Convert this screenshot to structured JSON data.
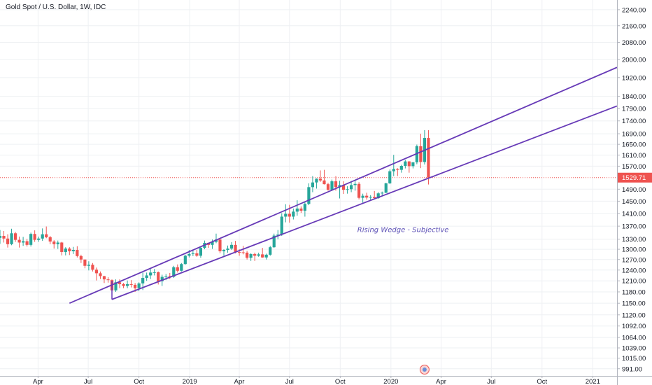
{
  "chart_data": {
    "type": "candlestick",
    "title": "Gold Spot / U.S. Dollar, 1W, IDC",
    "y_axis": {
      "ticks": [
        991.0,
        1015.0,
        1039.0,
        1064.0,
        1092.0,
        1120.0,
        1150.0,
        1180.0,
        1210.0,
        1240.0,
        1270.0,
        1300.0,
        1330.0,
        1370.0,
        1410.0,
        1450.0,
        1490.0,
        1570.0,
        1610.0,
        1650.0,
        1690.0,
        1740.0,
        1790.0,
        1840.0,
        1920.0,
        2000.0,
        2080.0,
        2160.0,
        2240.0
      ],
      "tick_labels": [
        "991.00",
        "1015.00",
        "1039.00",
        "1064.00",
        "1092.00",
        "1120.00",
        "1150.00",
        "1180.00",
        "1210.00",
        "1240.00",
        "1270.00",
        "1300.00",
        "1330.00",
        "1370.00",
        "1410.00",
        "1450.00",
        "1490.00",
        "1570.00",
        "1610.00",
        "1650.00",
        "1690.00",
        "1740.00",
        "1790.00",
        "1840.00",
        "1920.00",
        "2000.00",
        "2080.00",
        "2160.00",
        "2240.00"
      ],
      "scale": "log",
      "range": [
        975,
        2290
      ]
    },
    "x_axis": {
      "tick_labels": [
        "Apr",
        "Jul",
        "Oct",
        "2019",
        "Apr",
        "Jul",
        "Oct",
        "2020",
        "Apr",
        "Jul",
        "Oct",
        "2021"
      ],
      "tick_dates": [
        "2018-04-01",
        "2018-07-01",
        "2018-10-01",
        "2019-01-01",
        "2019-04-01",
        "2019-07-01",
        "2019-10-01",
        "2020-01-01",
        "2020-04-01",
        "2020-07-01",
        "2020-10-01",
        "2021-01-01"
      ],
      "range": [
        "2018-01-22",
        "2021-02-14"
      ]
    },
    "current_price": {
      "value": 1529.71,
      "label": "1529.71"
    },
    "annotation": "Rising Wedge - Subjective",
    "colors": {
      "up": "#26a69a",
      "down": "#ef5350",
      "wedge": "#673ab7",
      "annotation": "#5b4fb5",
      "grid": "#eef0f3",
      "price_line": "#ef5350"
    },
    "trendlines": [
      {
        "name": "upper",
        "start": {
          "date": "2018-05-28",
          "price": 1150
        },
        "end": {
          "date": "2021-02-14",
          "price": 1965
        }
      },
      {
        "name": "lower",
        "start": {
          "date": "2018-08-13",
          "price": 1160
        },
        "end": {
          "date": "2021-02-14",
          "price": 1800
        }
      }
    ],
    "candles": [
      {
        "date": "2018-01-22",
        "o": 1334,
        "h": 1358,
        "l": 1316,
        "c": 1340
      },
      {
        "date": "2018-01-29",
        "o": 1340,
        "h": 1355,
        "l": 1320,
        "c": 1332
      },
      {
        "date": "2018-02-05",
        "o": 1332,
        "h": 1345,
        "l": 1305,
        "c": 1315
      },
      {
        "date": "2018-02-12",
        "o": 1315,
        "h": 1362,
        "l": 1312,
        "c": 1348
      },
      {
        "date": "2018-02-19",
        "o": 1348,
        "h": 1352,
        "l": 1322,
        "c": 1328
      },
      {
        "date": "2018-02-26",
        "o": 1328,
        "h": 1338,
        "l": 1305,
        "c": 1320
      },
      {
        "date": "2018-03-05",
        "o": 1320,
        "h": 1337,
        "l": 1310,
        "c": 1324
      },
      {
        "date": "2018-03-12",
        "o": 1324,
        "h": 1331,
        "l": 1308,
        "c": 1313
      },
      {
        "date": "2018-03-19",
        "o": 1313,
        "h": 1350,
        "l": 1308,
        "c": 1346
      },
      {
        "date": "2018-03-26",
        "o": 1346,
        "h": 1357,
        "l": 1322,
        "c": 1328
      },
      {
        "date": "2018-04-02",
        "o": 1328,
        "h": 1338,
        "l": 1322,
        "c": 1332
      },
      {
        "date": "2018-04-09",
        "o": 1332,
        "h": 1363,
        "l": 1325,
        "c": 1345
      },
      {
        "date": "2018-04-16",
        "o": 1345,
        "h": 1369,
        "l": 1333,
        "c": 1336
      },
      {
        "date": "2018-04-23",
        "o": 1336,
        "h": 1340,
        "l": 1315,
        "c": 1323
      },
      {
        "date": "2018-04-30",
        "o": 1323,
        "h": 1327,
        "l": 1302,
        "c": 1315
      },
      {
        "date": "2018-05-07",
        "o": 1315,
        "h": 1326,
        "l": 1301,
        "c": 1320
      },
      {
        "date": "2018-05-14",
        "o": 1320,
        "h": 1322,
        "l": 1282,
        "c": 1292
      },
      {
        "date": "2018-05-21",
        "o": 1292,
        "h": 1306,
        "l": 1282,
        "c": 1302
      },
      {
        "date": "2018-05-28",
        "o": 1302,
        "h": 1306,
        "l": 1283,
        "c": 1294
      },
      {
        "date": "2018-06-04",
        "o": 1294,
        "h": 1307,
        "l": 1286,
        "c": 1298
      },
      {
        "date": "2018-06-11",
        "o": 1298,
        "h": 1309,
        "l": 1276,
        "c": 1280
      },
      {
        "date": "2018-06-18",
        "o": 1280,
        "h": 1284,
        "l": 1260,
        "c": 1270
      },
      {
        "date": "2018-06-25",
        "o": 1270,
        "h": 1270,
        "l": 1245,
        "c": 1252
      },
      {
        "date": "2018-07-02",
        "o": 1252,
        "h": 1265,
        "l": 1239,
        "c": 1255
      },
      {
        "date": "2018-07-09",
        "o": 1255,
        "h": 1260,
        "l": 1236,
        "c": 1241
      },
      {
        "date": "2018-07-16",
        "o": 1241,
        "h": 1247,
        "l": 1211,
        "c": 1231
      },
      {
        "date": "2018-07-23",
        "o": 1231,
        "h": 1236,
        "l": 1215,
        "c": 1223
      },
      {
        "date": "2018-07-30",
        "o": 1223,
        "h": 1224,
        "l": 1204,
        "c": 1214
      },
      {
        "date": "2018-08-06",
        "o": 1214,
        "h": 1220,
        "l": 1205,
        "c": 1212
      },
      {
        "date": "2018-08-13",
        "o": 1212,
        "h": 1214,
        "l": 1160,
        "c": 1184
      },
      {
        "date": "2018-08-20",
        "o": 1184,
        "h": 1214,
        "l": 1180,
        "c": 1206
      },
      {
        "date": "2018-08-27",
        "o": 1206,
        "h": 1214,
        "l": 1190,
        "c": 1201
      },
      {
        "date": "2018-09-03",
        "o": 1201,
        "h": 1204,
        "l": 1190,
        "c": 1196
      },
      {
        "date": "2018-09-10",
        "o": 1196,
        "h": 1211,
        "l": 1190,
        "c": 1201
      },
      {
        "date": "2018-09-17",
        "o": 1201,
        "h": 1212,
        "l": 1192,
        "c": 1199
      },
      {
        "date": "2018-09-24",
        "o": 1199,
        "h": 1204,
        "l": 1180,
        "c": 1190
      },
      {
        "date": "2018-10-01",
        "o": 1190,
        "h": 1206,
        "l": 1182,
        "c": 1203
      },
      {
        "date": "2018-10-08",
        "o": 1203,
        "h": 1233,
        "l": 1185,
        "c": 1218
      },
      {
        "date": "2018-10-15",
        "o": 1218,
        "h": 1233,
        "l": 1210,
        "c": 1225
      },
      {
        "date": "2018-10-22",
        "o": 1225,
        "h": 1243,
        "l": 1215,
        "c": 1233
      },
      {
        "date": "2018-10-29",
        "o": 1233,
        "h": 1243,
        "l": 1225,
        "c": 1234
      },
      {
        "date": "2018-11-05",
        "o": 1234,
        "h": 1236,
        "l": 1200,
        "c": 1209
      },
      {
        "date": "2018-11-12",
        "o": 1209,
        "h": 1227,
        "l": 1196,
        "c": 1221
      },
      {
        "date": "2018-11-19",
        "o": 1221,
        "h": 1229,
        "l": 1212,
        "c": 1223
      },
      {
        "date": "2018-11-26",
        "o": 1223,
        "h": 1232,
        "l": 1215,
        "c": 1221
      },
      {
        "date": "2018-12-03",
        "o": 1221,
        "h": 1252,
        "l": 1218,
        "c": 1248
      },
      {
        "date": "2018-12-10",
        "o": 1248,
        "h": 1256,
        "l": 1233,
        "c": 1238
      },
      {
        "date": "2018-12-17",
        "o": 1238,
        "h": 1260,
        "l": 1236,
        "c": 1257
      },
      {
        "date": "2018-12-24",
        "o": 1257,
        "h": 1284,
        "l": 1255,
        "c": 1281
      },
      {
        "date": "2018-12-31",
        "o": 1281,
        "h": 1298,
        "l": 1276,
        "c": 1286
      },
      {
        "date": "2019-01-07",
        "o": 1286,
        "h": 1298,
        "l": 1280,
        "c": 1288
      },
      {
        "date": "2019-01-14",
        "o": 1288,
        "h": 1298,
        "l": 1278,
        "c": 1281
      },
      {
        "date": "2019-01-21",
        "o": 1281,
        "h": 1307,
        "l": 1275,
        "c": 1304
      },
      {
        "date": "2019-01-28",
        "o": 1304,
        "h": 1326,
        "l": 1300,
        "c": 1319
      },
      {
        "date": "2019-02-04",
        "o": 1319,
        "h": 1320,
        "l": 1304,
        "c": 1313
      },
      {
        "date": "2019-02-11",
        "o": 1313,
        "h": 1329,
        "l": 1301,
        "c": 1322
      },
      {
        "date": "2019-02-18",
        "o": 1322,
        "h": 1347,
        "l": 1318,
        "c": 1329
      },
      {
        "date": "2019-02-25",
        "o": 1329,
        "h": 1334,
        "l": 1288,
        "c": 1294
      },
      {
        "date": "2019-03-04",
        "o": 1294,
        "h": 1300,
        "l": 1281,
        "c": 1298
      },
      {
        "date": "2019-03-11",
        "o": 1298,
        "h": 1311,
        "l": 1290,
        "c": 1302
      },
      {
        "date": "2019-03-18",
        "o": 1302,
        "h": 1321,
        "l": 1298,
        "c": 1313
      },
      {
        "date": "2019-03-25",
        "o": 1313,
        "h": 1325,
        "l": 1288,
        "c": 1292
      },
      {
        "date": "2019-04-01",
        "o": 1292,
        "h": 1300,
        "l": 1281,
        "c": 1291
      },
      {
        "date": "2019-04-08",
        "o": 1291,
        "h": 1310,
        "l": 1285,
        "c": 1290
      },
      {
        "date": "2019-04-15",
        "o": 1290,
        "h": 1295,
        "l": 1270,
        "c": 1275
      },
      {
        "date": "2019-04-22",
        "o": 1275,
        "h": 1288,
        "l": 1266,
        "c": 1286
      },
      {
        "date": "2019-04-29",
        "o": 1286,
        "h": 1290,
        "l": 1266,
        "c": 1281
      },
      {
        "date": "2019-05-06",
        "o": 1281,
        "h": 1290,
        "l": 1278,
        "c": 1285
      },
      {
        "date": "2019-05-13",
        "o": 1285,
        "h": 1304,
        "l": 1275,
        "c": 1276
      },
      {
        "date": "2019-05-20",
        "o": 1276,
        "h": 1287,
        "l": 1270,
        "c": 1284
      },
      {
        "date": "2019-05-27",
        "o": 1284,
        "h": 1310,
        "l": 1281,
        "c": 1306
      },
      {
        "date": "2019-06-03",
        "o": 1306,
        "h": 1347,
        "l": 1304,
        "c": 1341
      },
      {
        "date": "2019-06-10",
        "o": 1341,
        "h": 1358,
        "l": 1330,
        "c": 1344
      },
      {
        "date": "2019-06-17",
        "o": 1344,
        "h": 1411,
        "l": 1340,
        "c": 1400
      },
      {
        "date": "2019-06-24",
        "o": 1400,
        "h": 1440,
        "l": 1382,
        "c": 1409
      },
      {
        "date": "2019-07-01",
        "o": 1409,
        "h": 1438,
        "l": 1381,
        "c": 1400
      },
      {
        "date": "2019-07-08",
        "o": 1400,
        "h": 1426,
        "l": 1391,
        "c": 1416
      },
      {
        "date": "2019-07-15",
        "o": 1416,
        "h": 1453,
        "l": 1403,
        "c": 1426
      },
      {
        "date": "2019-07-22",
        "o": 1426,
        "h": 1433,
        "l": 1412,
        "c": 1419
      },
      {
        "date": "2019-07-29",
        "o": 1419,
        "h": 1446,
        "l": 1400,
        "c": 1441
      },
      {
        "date": "2019-08-05",
        "o": 1441,
        "h": 1510,
        "l": 1437,
        "c": 1497
      },
      {
        "date": "2019-08-12",
        "o": 1497,
        "h": 1535,
        "l": 1480,
        "c": 1513
      },
      {
        "date": "2019-08-19",
        "o": 1513,
        "h": 1527,
        "l": 1492,
        "c": 1526
      },
      {
        "date": "2019-08-26",
        "o": 1526,
        "h": 1555,
        "l": 1515,
        "c": 1520
      },
      {
        "date": "2019-09-02",
        "o": 1520,
        "h": 1557,
        "l": 1506,
        "c": 1507
      },
      {
        "date": "2019-09-09",
        "o": 1507,
        "h": 1512,
        "l": 1485,
        "c": 1488
      },
      {
        "date": "2019-09-16",
        "o": 1488,
        "h": 1523,
        "l": 1484,
        "c": 1517
      },
      {
        "date": "2019-09-23",
        "o": 1517,
        "h": 1535,
        "l": 1485,
        "c": 1497
      },
      {
        "date": "2019-09-30",
        "o": 1497,
        "h": 1519,
        "l": 1459,
        "c": 1504
      },
      {
        "date": "2019-10-07",
        "o": 1504,
        "h": 1517,
        "l": 1474,
        "c": 1488
      },
      {
        "date": "2019-10-14",
        "o": 1488,
        "h": 1500,
        "l": 1475,
        "c": 1490
      },
      {
        "date": "2019-10-21",
        "o": 1490,
        "h": 1518,
        "l": 1480,
        "c": 1504
      },
      {
        "date": "2019-10-28",
        "o": 1504,
        "h": 1520,
        "l": 1485,
        "c": 1508
      },
      {
        "date": "2019-11-04",
        "o": 1508,
        "h": 1514,
        "l": 1456,
        "c": 1461
      },
      {
        "date": "2019-11-11",
        "o": 1461,
        "h": 1475,
        "l": 1445,
        "c": 1468
      },
      {
        "date": "2019-11-18",
        "o": 1468,
        "h": 1478,
        "l": 1455,
        "c": 1462
      },
      {
        "date": "2019-11-25",
        "o": 1462,
        "h": 1470,
        "l": 1452,
        "c": 1464
      },
      {
        "date": "2019-12-02",
        "o": 1464,
        "h": 1484,
        "l": 1459,
        "c": 1460
      },
      {
        "date": "2019-12-09",
        "o": 1460,
        "h": 1480,
        "l": 1458,
        "c": 1476
      },
      {
        "date": "2019-12-16",
        "o": 1476,
        "h": 1482,
        "l": 1469,
        "c": 1478
      },
      {
        "date": "2019-12-23",
        "o": 1478,
        "h": 1512,
        "l": 1477,
        "c": 1510
      },
      {
        "date": "2019-12-30",
        "o": 1510,
        "h": 1558,
        "l": 1508,
        "c": 1552
      },
      {
        "date": "2020-01-06",
        "o": 1552,
        "h": 1611,
        "l": 1535,
        "c": 1560
      },
      {
        "date": "2020-01-13",
        "o": 1560,
        "h": 1563,
        "l": 1535,
        "c": 1557
      },
      {
        "date": "2020-01-20",
        "o": 1557,
        "h": 1575,
        "l": 1547,
        "c": 1571
      },
      {
        "date": "2020-01-27",
        "o": 1571,
        "h": 1592,
        "l": 1562,
        "c": 1587
      },
      {
        "date": "2020-02-03",
        "o": 1587,
        "h": 1588,
        "l": 1547,
        "c": 1570
      },
      {
        "date": "2020-02-10",
        "o": 1570,
        "h": 1584,
        "l": 1562,
        "c": 1584
      },
      {
        "date": "2020-02-17",
        "o": 1584,
        "h": 1649,
        "l": 1577,
        "c": 1643
      },
      {
        "date": "2020-02-24",
        "o": 1643,
        "h": 1690,
        "l": 1563,
        "c": 1585
      },
      {
        "date": "2020-03-02",
        "o": 1585,
        "h": 1704,
        "l": 1576,
        "c": 1674
      },
      {
        "date": "2020-03-09",
        "o": 1674,
        "h": 1704,
        "l": 1506,
        "c": 1529.71
      }
    ]
  }
}
